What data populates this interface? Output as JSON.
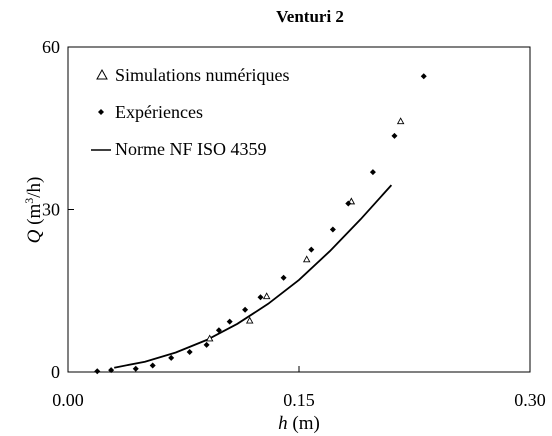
{
  "chart_data": {
    "type": "scatter",
    "title": "Venturi 2",
    "xlabel_var": "h",
    "xlabel_unit": " (m)",
    "ylabel_var": "Q",
    "ylabel_unit_prefix": " (m",
    "ylabel_unit_exp": "3",
    "ylabel_unit_suffix": "/h)",
    "xlim": [
      0,
      0.3
    ],
    "ylim": [
      0,
      60
    ],
    "xticks": [
      0.0,
      0.15,
      0.3
    ],
    "xtick_labels": [
      "0.00",
      "0.15",
      "0.30"
    ],
    "yticks": [
      0,
      30,
      60
    ],
    "ytick_labels": [
      "0",
      "30",
      "60"
    ],
    "grid": false,
    "legend_position": "top-left",
    "series": [
      {
        "name": "Simulations numériques",
        "marker": "open-triangle",
        "color": "#000000",
        "errorbar_color": "#3b3b9a",
        "x": [
          0.092,
          0.118,
          0.129,
          0.155,
          0.184,
          0.216
        ],
        "y": [
          6.2,
          9.5,
          14.0,
          20.8,
          31.5,
          46.3
        ],
        "yerr": [
          0,
          0,
          0.8,
          0.8,
          1.2,
          2.2
        ]
      },
      {
        "name": "Expériences",
        "marker": "filled-diamond",
        "color": "#000000",
        "x": [
          0.019,
          0.028,
          0.044,
          0.055,
          0.067,
          0.079,
          0.09,
          0.098,
          0.105,
          0.115,
          0.125,
          0.14,
          0.158,
          0.172,
          0.182,
          0.198,
          0.212,
          0.231
        ],
        "y": [
          0.15,
          0.35,
          0.6,
          1.2,
          2.6,
          3.7,
          5.0,
          7.7,
          9.3,
          11.5,
          13.8,
          17.4,
          22.6,
          26.3,
          31.1,
          36.9,
          43.6,
          54.6
        ],
        "yerr": [
          0,
          0,
          0,
          0,
          0,
          0,
          0,
          0.5,
          0.5,
          0.6,
          0.7,
          0.9,
          1.1,
          1.3,
          1.5,
          1.8,
          2.1,
          2.3
        ]
      },
      {
        "name": "Norme NF ISO 4359",
        "marker": "line",
        "color": "#000000",
        "x": [
          0.03,
          0.05,
          0.07,
          0.09,
          0.11,
          0.13,
          0.15,
          0.17,
          0.19,
          0.21
        ],
        "y": [
          0.8,
          1.9,
          3.6,
          5.9,
          8.9,
          12.6,
          17.0,
          22.3,
          28.2,
          34.5
        ]
      }
    ]
  }
}
